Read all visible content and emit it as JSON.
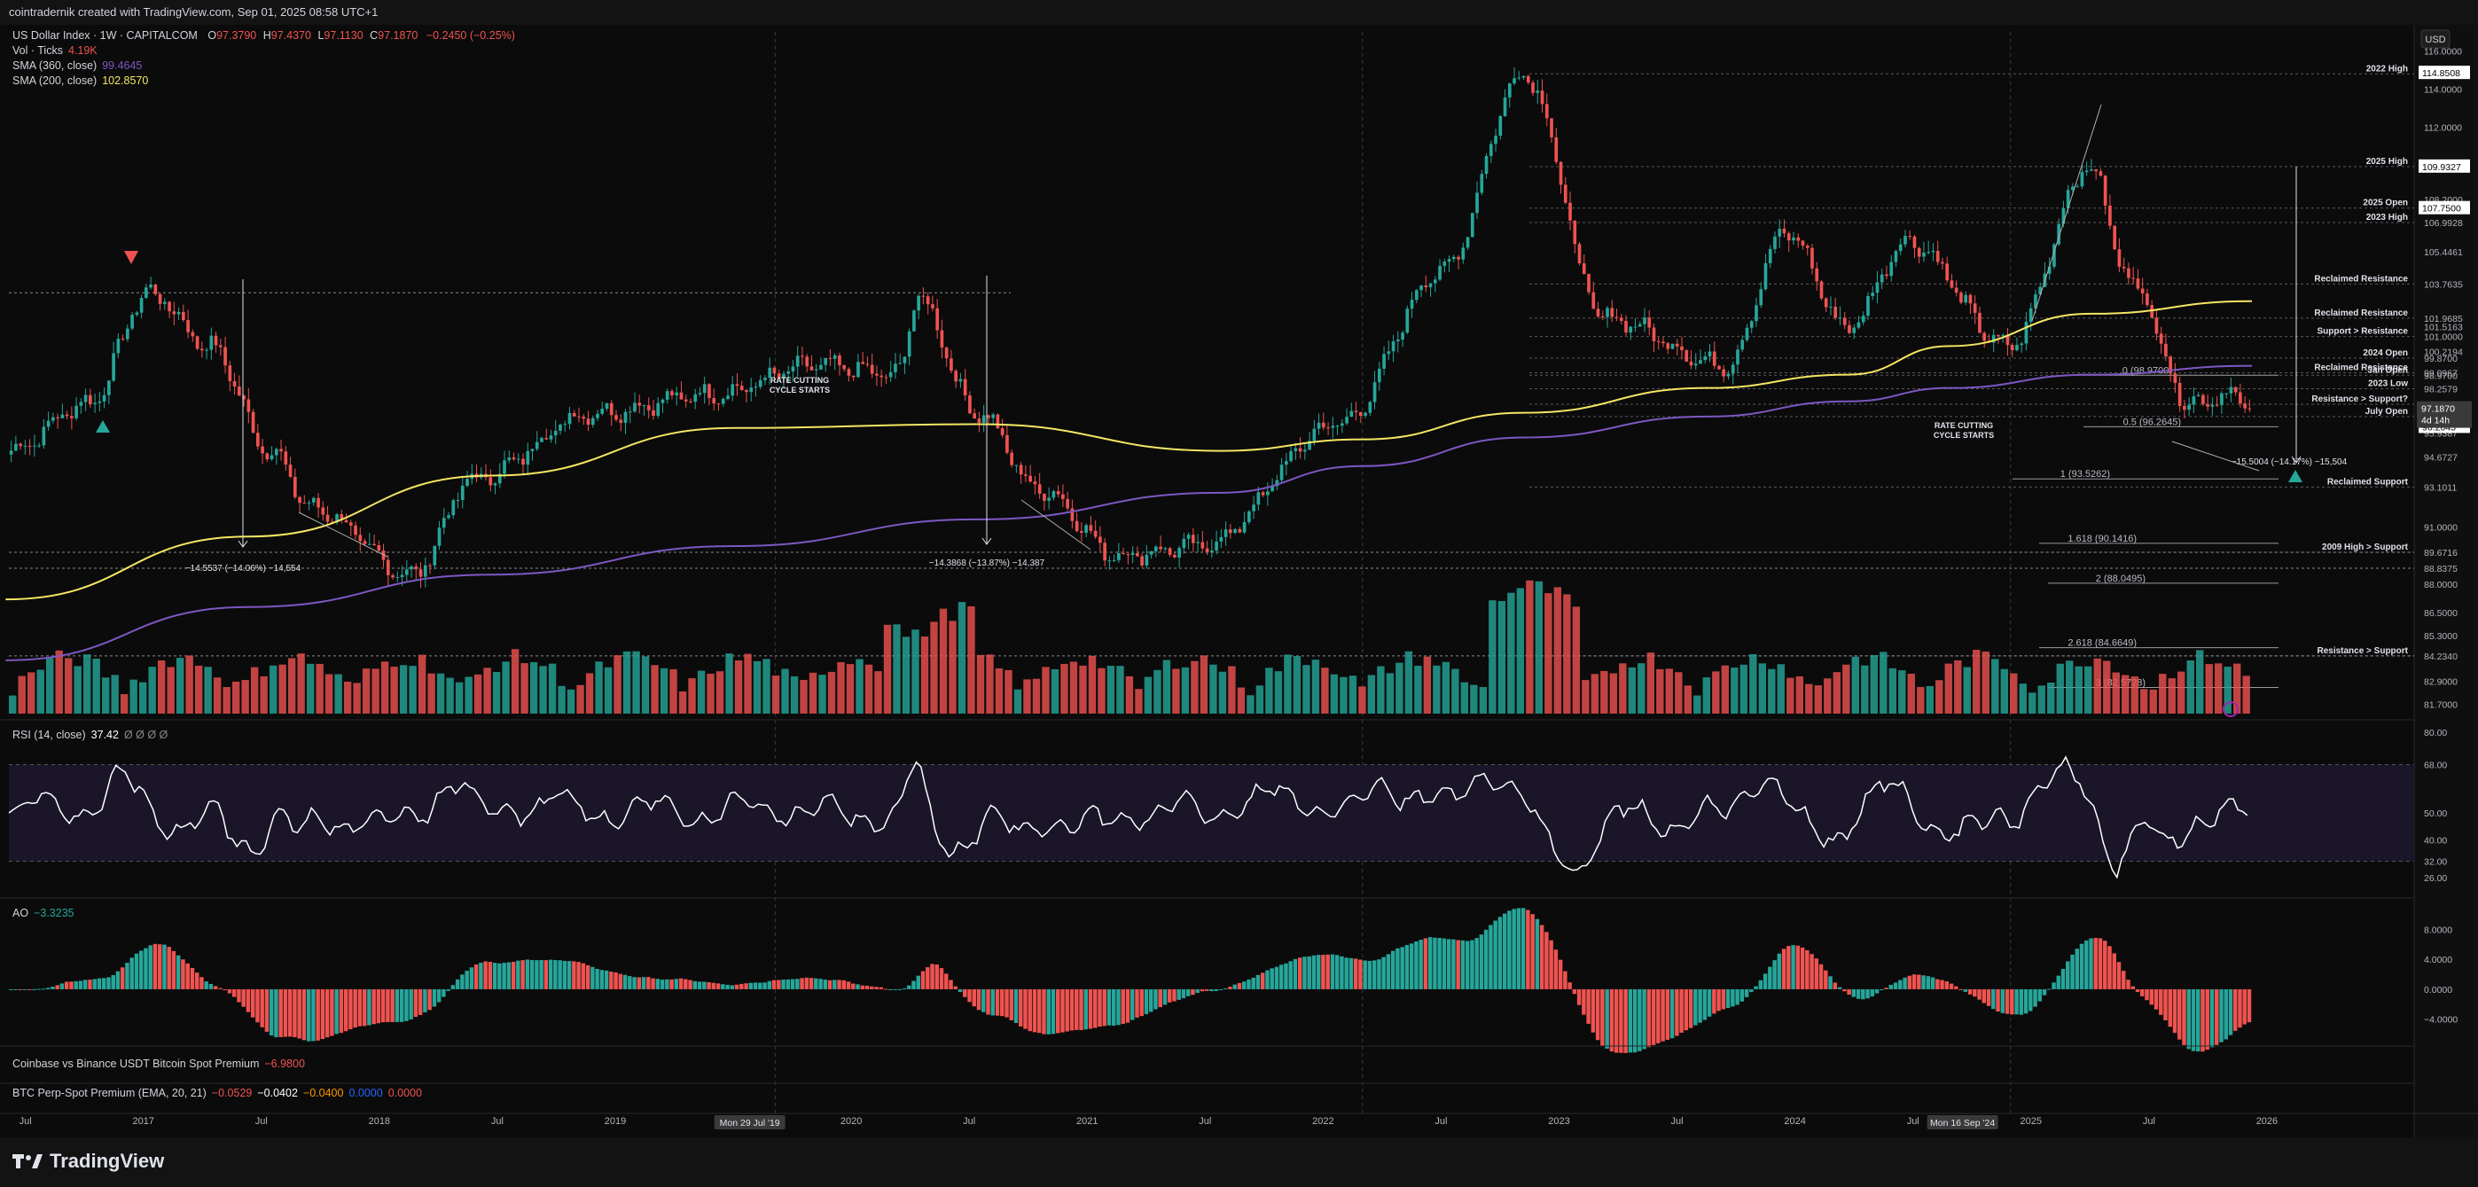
{
  "header": {
    "creator": "cointradernik created with TradingView.com, Sep 01, 2025 08:58 UTC+1"
  },
  "legend": {
    "symbol": "US Dollar Index · 1W · CAPITALCOM",
    "ohlc": [
      {
        "k": "O",
        "v": "97.3790"
      },
      {
        "k": "H",
        "v": "97.4370"
      },
      {
        "k": "L",
        "v": "97.1130"
      },
      {
        "k": "C",
        "v": "97.1870"
      }
    ],
    "change": "−0.2450 (−0.25%)",
    "vol_label": "Vol · Ticks",
    "vol_value": "4.19K",
    "sma360_label": "SMA (360, close)",
    "sma360_value": "99.4645",
    "sma200_label": "SMA (200, close)",
    "sma200_value": "102.8570"
  },
  "colors": {
    "background": "#0b0b0b",
    "up": "#26a69a",
    "down": "#ef5350",
    "sma200": "#f5e663",
    "sma360": "#7e57c2",
    "text": "#d1d4dc",
    "rsi_band": "#1a1528"
  },
  "price_axis": {
    "currency": "USD",
    "ticks": [
      "116.0000",
      "114.0000",
      "112.0000",
      "110.0000",
      "108.2000",
      "107.7792",
      "106.9928",
      "105.4461",
      "103.7635",
      "101.9685",
      "101.5163",
      "101.0000",
      "100.2194",
      "99.8700",
      "99.0967",
      "98.9700",
      "98.2579",
      "97.4465",
      "96.7989",
      "96.3000",
      "95.9387",
      "94.6727",
      "93.1011",
      "91.0000",
      "89.6716",
      "88.8375",
      "88.0000",
      "86.5000",
      "85.3000",
      "84.2340",
      "82.9000",
      "81.7000"
    ],
    "boxed": [
      "114.8508",
      "109.9327",
      "107.7500",
      "96.2645"
    ],
    "last_price": "97.1870",
    "countdown": "4d 14h"
  },
  "rsi": {
    "label": "RSI (14, close)",
    "value": "37.42",
    "extras": "Ø Ø Ø Ø",
    "ticks": [
      "80.00",
      "68.00",
      "50.00",
      "40.00",
      "32.00",
      "26.00"
    ]
  },
  "ao": {
    "label": "AO",
    "value": "−3.3235",
    "ticks": [
      "8.0000",
      "4.0000",
      "0.0000",
      "−4.0000"
    ]
  },
  "coinbase": {
    "label": "Coinbase vs Binance USDT Bitcoin Spot Premium",
    "value": "−6.9800"
  },
  "btcperp": {
    "label": "BTC Perp-Spot Premium (EMA, 20, 21)",
    "values": [
      "−0.0529",
      "−0.0402",
      "−0.0400",
      "0.0000",
      "0.0000"
    ]
  },
  "time_axis": {
    "labels": [
      "Jul",
      "2017",
      "Jul",
      "2018",
      "Jul",
      "2019",
      "2020",
      "Jul",
      "2021",
      "Jul",
      "2022",
      "Jul",
      "2023",
      "Jul",
      "2024",
      "Jul",
      "2025",
      "Jul",
      "2026"
    ],
    "highlights": [
      "Mon 29 Jul '19",
      "Mon 16 Sep '24"
    ]
  },
  "levels": [
    "2022 High",
    "2025 High",
    "2025 Open",
    "2023 High",
    "Reclaimed Resistance",
    "Reclaimed Resistance",
    "Support > Resistance",
    "2024 Open",
    "Reclaimed Resistance",
    "2023 Low",
    "Resistance > Support?",
    "July Open",
    "Reclaimed Support",
    "2009 High > Support",
    "Resistance > Support",
    "Jan Open"
  ],
  "fib": [
    "0.5 (96.2645)",
    "1 (93.5262)",
    "1.618 (90.1416)",
    "2 (88.0495)",
    "2.618 (84.6649)",
    "3 (82.5728)",
    "0 (98.9700)"
  ],
  "annotations": {
    "rate_cutting_1": [
      "RATE CUTTING",
      "CYCLE STARTS"
    ],
    "rate_cutting_2": [
      "RATE CUTTING",
      "CYCLE STARTS"
    ],
    "measure1": "−14.5537 (−14.06%) −14,554",
    "measure2": "−14.3868 (−13.87%) −14,387",
    "measure3": "−15.5004 (−14.17%) −15,504"
  },
  "branding": {
    "name": "TradingView"
  },
  "chart_data": {
    "type": "candlestick",
    "title": "US Dollar Index · 1W · CAPITALCOM",
    "ylim": [
      81.7,
      117.0
    ],
    "anchors": [
      [
        "2016-06",
        95.0
      ],
      [
        "2016-10",
        97.5
      ],
      [
        "2017-01",
        103.3
      ],
      [
        "2017-04",
        100.5
      ],
      [
        "2017-07",
        95.0
      ],
      [
        "2017-09",
        92.0
      ],
      [
        "2018-02",
        88.5
      ],
      [
        "2018-05",
        93.5
      ],
      [
        "2018-11",
        97.0
      ],
      [
        "2019-05",
        98.0
      ],
      [
        "2019-10",
        99.5
      ],
      [
        "2020-02",
        99.0
      ],
      [
        "2020-03",
        103.0
      ],
      [
        "2020-06",
        97.0
      ],
      [
        "2020-09",
        93.0
      ],
      [
        "2021-01",
        89.5
      ],
      [
        "2021-05",
        90.0
      ],
      [
        "2021-12",
        96.5
      ],
      [
        "2022-05",
        104.5
      ],
      [
        "2022-09",
        114.8
      ],
      [
        "2023-01",
        102.0
      ],
      [
        "2023-07",
        99.5
      ],
      [
        "2023-10",
        106.5
      ],
      [
        "2024-01",
        101.5
      ],
      [
        "2024-04",
        106.0
      ],
      [
        "2024-09",
        100.5
      ],
      [
        "2025-01",
        109.9
      ],
      [
        "2025-03",
        104.0
      ],
      [
        "2025-06",
        97.5
      ],
      [
        "2025-08",
        98.0
      ],
      [
        "2025-08-29",
        97.187
      ]
    ],
    "indicators": {
      "sma200_last": 102.857,
      "sma360_last": 99.4645,
      "rsi_last": 37.42,
      "ao_last": -3.3235
    }
  }
}
